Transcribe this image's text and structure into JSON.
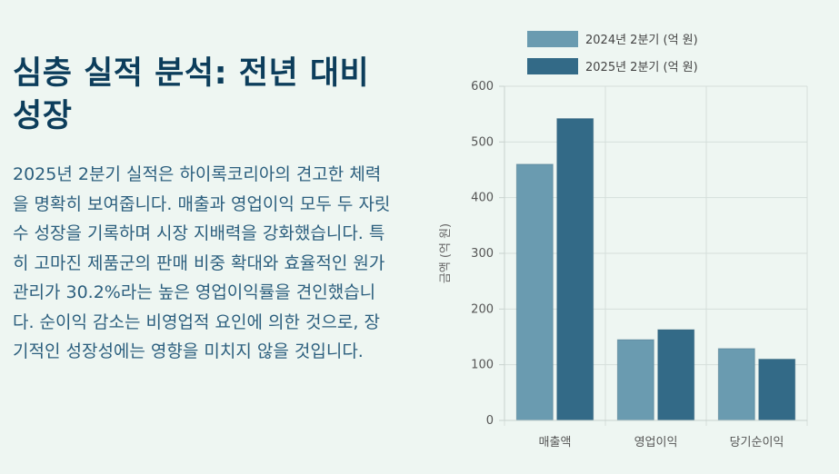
{
  "heading": "심층 실적 분석: 전년 대비 성장",
  "paragraph": "2025년 2분기 실적은 하이록코리아의 견고한 체력을 명확히 보여줍니다. 매출과 영업이익 모두 두 자릿수 성장을 기록하며 시장 지배력을 강화했습니다. 특히 고마진 제품군의 판매 비중 확대와 효율적인 원가 관리가 30.2%라는 높은 영업이익률을 견인했습니다. 순이익 감소는 비영업적 요인에 의한 것으로, 장기적인 성장성에는 영향을 미치지 않을 것입니다.",
  "chart_data": {
    "type": "bar",
    "categories": [
      "매출액",
      "영업이익",
      "당기순이익"
    ],
    "series": [
      {
        "name": "2024년 2분기 (억 원)",
        "values": [
          460,
          145,
          129
        ],
        "color": "#6a9bb0"
      },
      {
        "name": "2025년 2분기 (억 원)",
        "values": [
          542,
          163,
          110
        ],
        "color": "#336a87"
      }
    ],
    "xlabel": "",
    "ylabel": "금액 (억 원)",
    "ylim": [
      0,
      600
    ],
    "yticks": [
      0,
      100,
      200,
      300,
      400,
      500,
      600
    ],
    "grid": true,
    "legend_position": "top"
  }
}
